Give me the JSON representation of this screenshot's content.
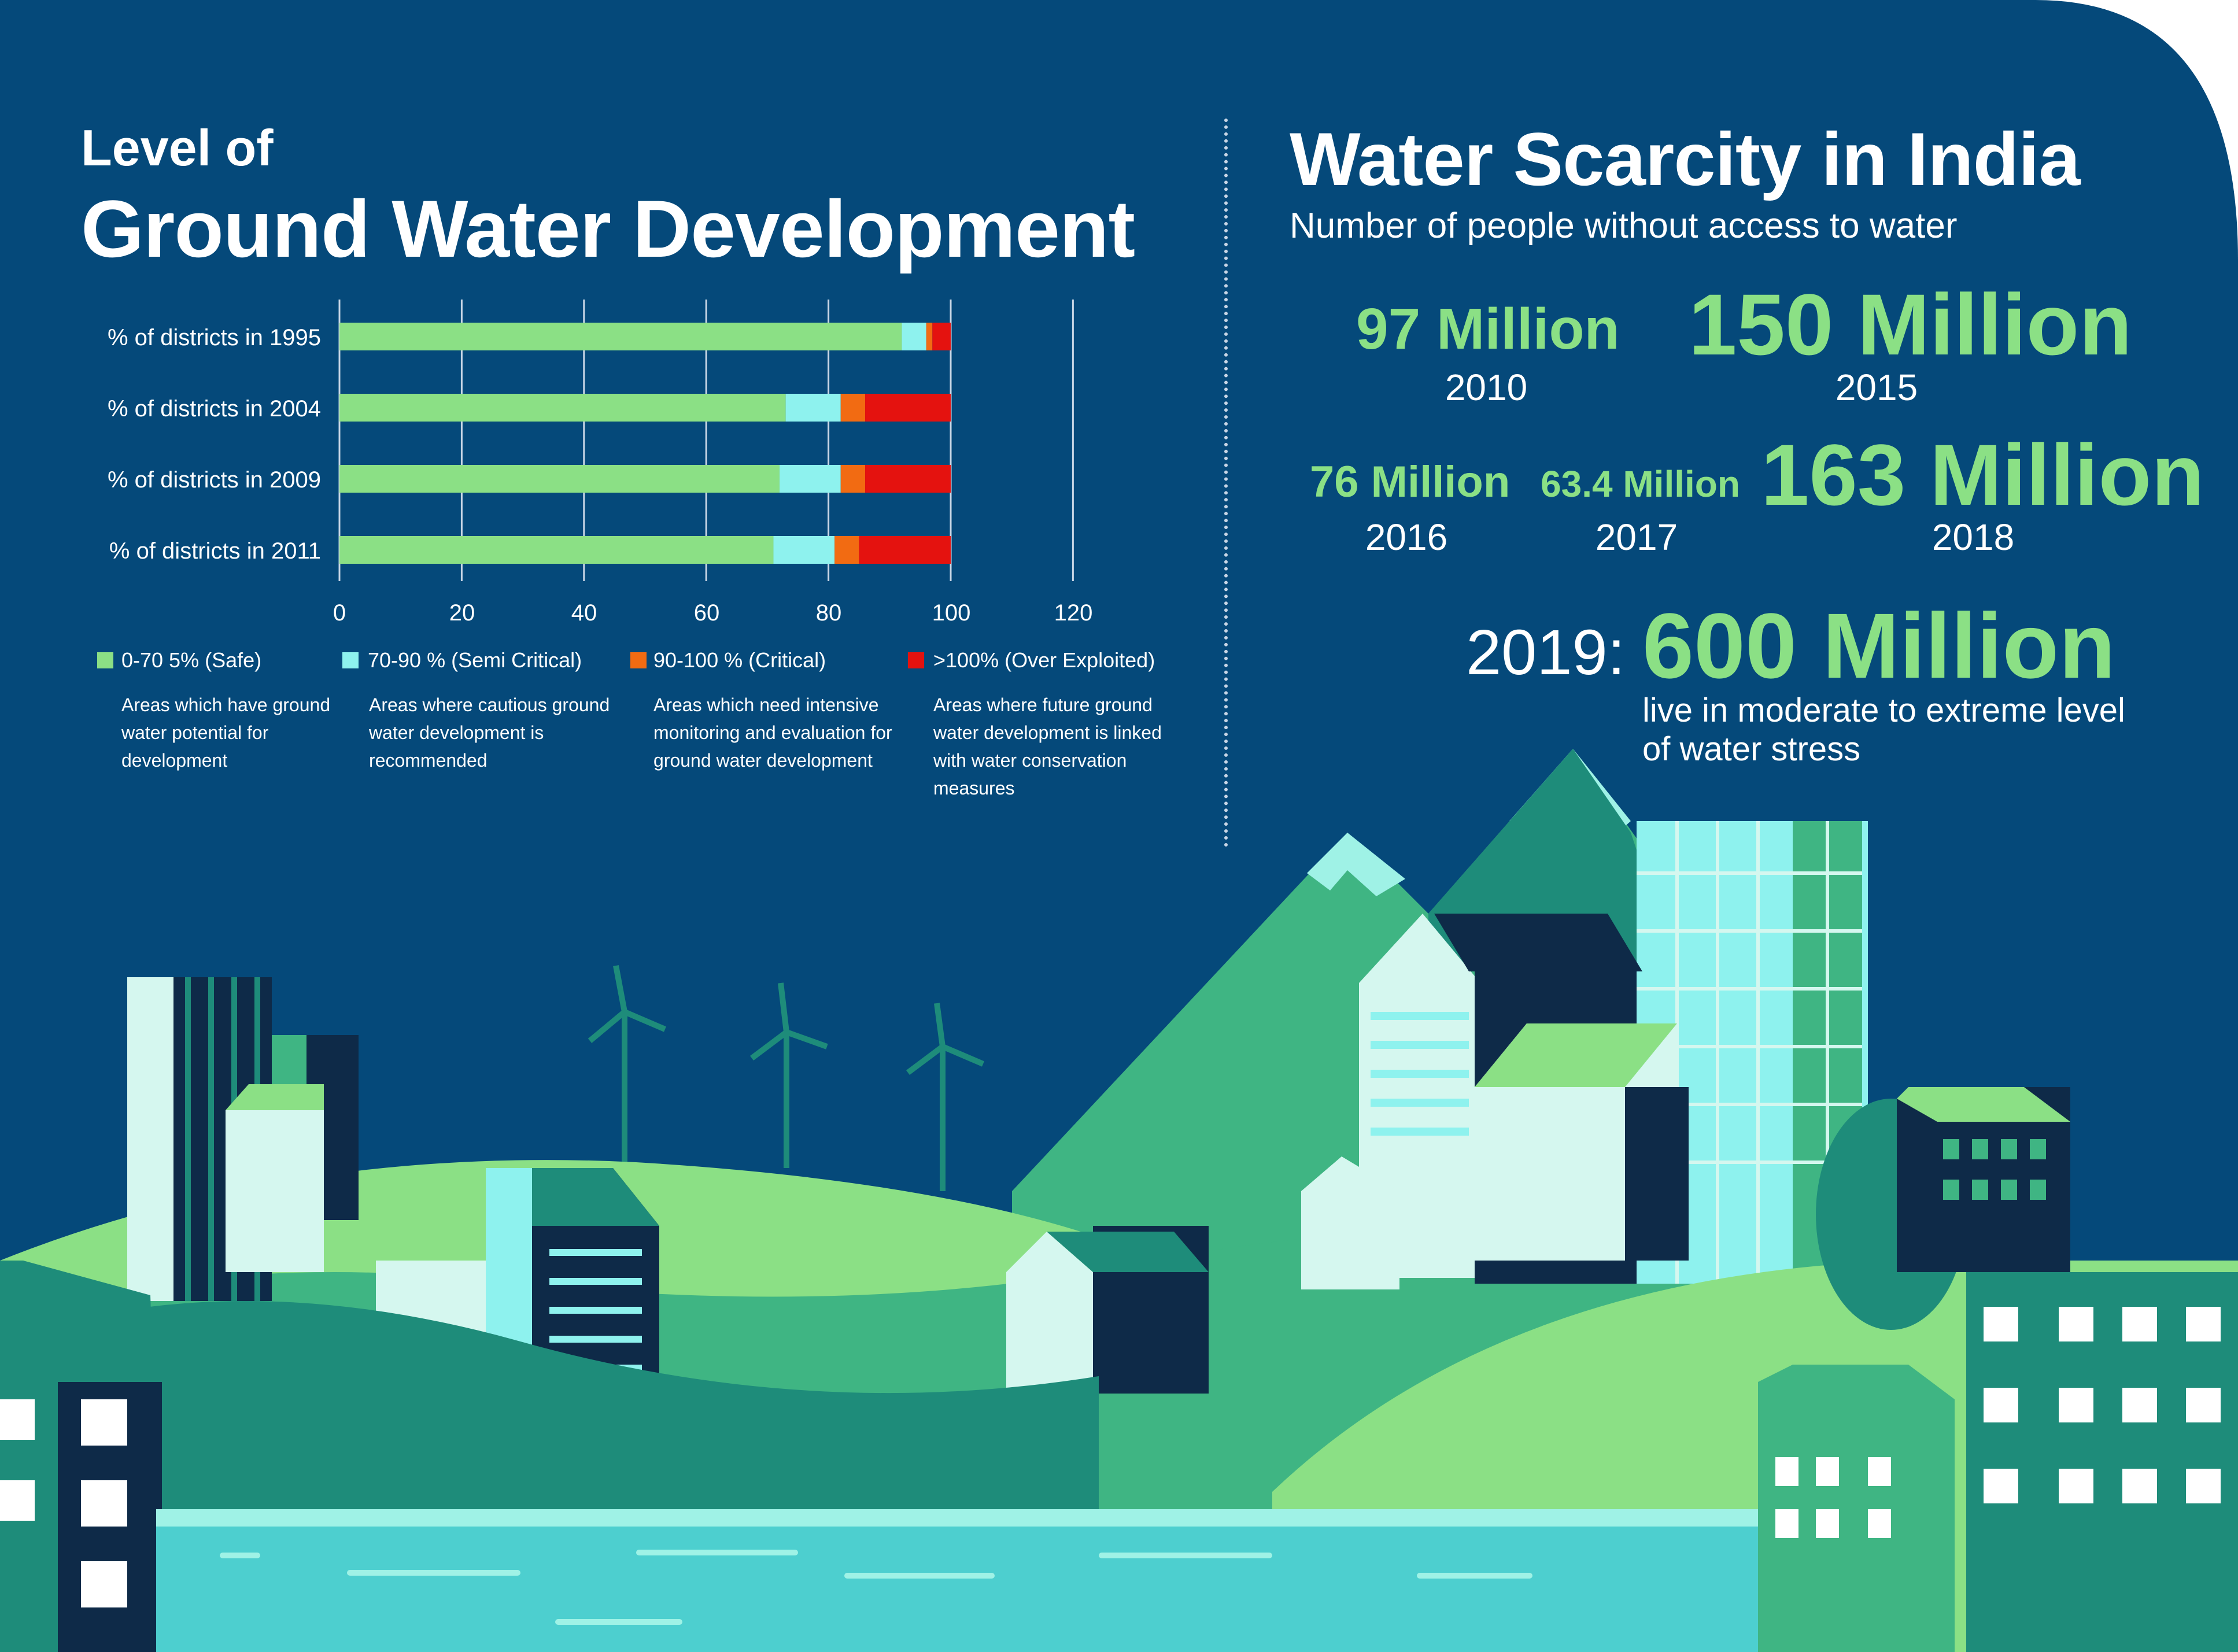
{
  "left_title": {
    "line1": "Level of",
    "line2": "Ground Water Development"
  },
  "right_title": {
    "title": "Water Scarcity in India",
    "subtitle": "Number of people without access to water"
  },
  "colors": {
    "background": "#05497a",
    "safe": "#8be085",
    "semi_critical": "#8ef2ee",
    "critical": "#f26b12",
    "over_exploited": "#e4120f",
    "highlight_green": "#8be085"
  },
  "chart_data": {
    "type": "bar",
    "orientation": "horizontal",
    "stacked": true,
    "categories": [
      "% of districts in 1995",
      "% of districts in 2004",
      "% of districts in 2009",
      "% of districts in 2011"
    ],
    "series": [
      {
        "name": "0-70 5% (Safe)",
        "values": [
          92,
          73,
          72,
          71
        ]
      },
      {
        "name": "70-90 % (Semi Critical)",
        "values": [
          4,
          9,
          10,
          10
        ]
      },
      {
        "name": "90-100 % (Critical)",
        "values": [
          1,
          4,
          4,
          4
        ]
      },
      {
        "name": ">100% (Over Exploited)",
        "values": [
          3,
          14,
          14,
          15
        ]
      }
    ],
    "xlim": [
      0,
      120
    ],
    "xticks": [
      "0",
      "20",
      "40",
      "60",
      "80",
      "100",
      "120"
    ],
    "grid": true,
    "legend": [
      {
        "label": "0-70 5% (Safe)",
        "description": "Areas which have ground water potential for development"
      },
      {
        "label": "70-90 % (Semi Critical)",
        "description": "Areas where cautious ground water development is recommended"
      },
      {
        "label": "90-100 % (Critical)",
        "description": "Areas which need intensive monitoring and evaluation for ground water development"
      },
      {
        "label": ">100% (Over Exploited)",
        "description": "Areas where future ground water development is linked with water conservation measures"
      }
    ]
  },
  "stats": [
    {
      "value": "97 Million",
      "year": "2010"
    },
    {
      "value": "150 Million",
      "year": "2015"
    },
    {
      "value": "76 Million",
      "year": "2016"
    },
    {
      "value": "63.4 Million",
      "year": "2017"
    },
    {
      "value": "163 Million",
      "year": "2018"
    }
  ],
  "highlight": {
    "year_label": "2019:",
    "value": "600 Million",
    "line1": "live in moderate to extreme level",
    "line2": "of water stress"
  }
}
